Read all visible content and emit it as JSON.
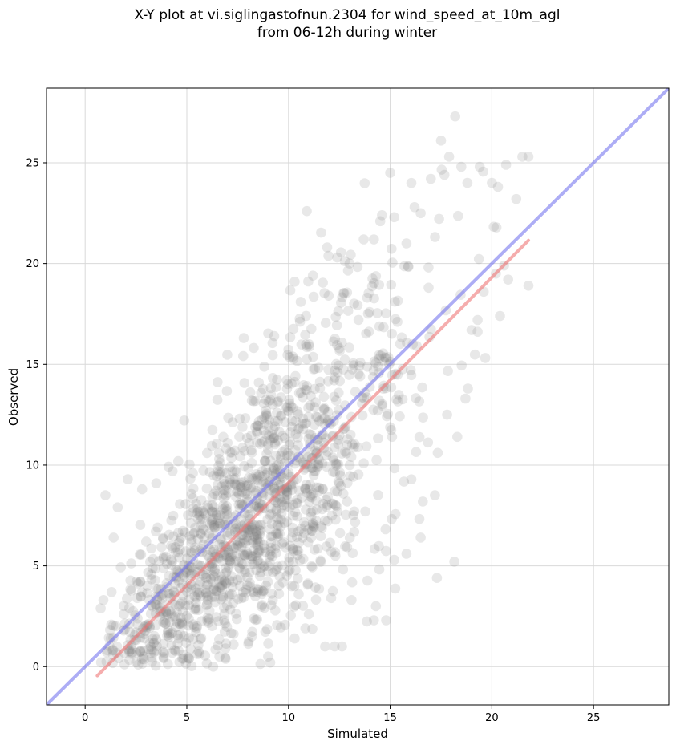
{
  "chart_data": {
    "type": "scatter",
    "title_line1": "X-Y plot at vi.siglingastofnun.2304 for wind_speed_at_10m_agl",
    "title_line2": "from 06-12h during winter",
    "xlabel": "Simulated",
    "ylabel": "Observed",
    "xlim": [
      -1.9,
      28.7
    ],
    "ylim": [
      -1.9,
      28.7
    ],
    "xticks": [
      0,
      5,
      10,
      15,
      20,
      25
    ],
    "yticks": [
      0,
      5,
      10,
      15,
      20,
      25
    ],
    "grid": true,
    "point_color": "#808080",
    "point_opacity": 0.18,
    "identity_line": {
      "color": "#7777ee",
      "from": [
        -1.9,
        -1.9
      ],
      "to": [
        28.7,
        28.7
      ]
    },
    "fit_line": {
      "color": "#ee7777",
      "from": [
        0.6,
        -0.45
      ],
      "to": [
        21.8,
        21.15
      ]
    },
    "generated_point_count": 1500,
    "points": [
      [
        0.9,
        3.3
      ],
      [
        1.1,
        0.8
      ],
      [
        1.3,
        3.7
      ],
      [
        1.0,
        8.5
      ],
      [
        1.4,
        6.4
      ],
      [
        1.6,
        7.9
      ],
      [
        2.1,
        9.3
      ],
      [
        1.9,
        2.6
      ],
      [
        2.5,
        1.7
      ],
      [
        3.0,
        6.2
      ],
      [
        2.8,
        8.8
      ],
      [
        3.5,
        9.1
      ],
      [
        3.2,
        5.2
      ],
      [
        4.3,
        9.7
      ],
      [
        3.8,
        3.1
      ],
      [
        4.6,
        1.4
      ],
      [
        5.1,
        0.4
      ],
      [
        5.5,
        2.0
      ],
      [
        6.3,
        0.0
      ],
      [
        6.6,
        0.5
      ],
      [
        6.9,
        0.9
      ],
      [
        7.3,
        1.1
      ],
      [
        8.2,
        1.5
      ],
      [
        9.1,
        0.2
      ],
      [
        9.0,
        0.5
      ],
      [
        10.3,
        1.4
      ],
      [
        11.8,
        1.0
      ],
      [
        11.0,
        2.6
      ],
      [
        12.1,
        3.4
      ],
      [
        13.1,
        3.3
      ],
      [
        14.2,
        2.3
      ],
      [
        14.8,
        2.3
      ],
      [
        14.3,
        3.0
      ],
      [
        15.2,
        5.3
      ],
      [
        15.8,
        5.6
      ],
      [
        16.5,
        6.4
      ],
      [
        17.3,
        4.4
      ],
      [
        17.2,
        8.5
      ],
      [
        18.3,
        11.4
      ],
      [
        17.8,
        12.5
      ],
      [
        18.7,
        13.3
      ],
      [
        19.0,
        16.7
      ],
      [
        19.3,
        17.2
      ],
      [
        19.6,
        18.6
      ],
      [
        20.4,
        17.4
      ],
      [
        20.2,
        19.5
      ],
      [
        20.6,
        19.9
      ],
      [
        20.8,
        19.2
      ],
      [
        21.8,
        18.9
      ],
      [
        21.2,
        23.2
      ],
      [
        21.5,
        25.3
      ],
      [
        21.8,
        25.3
      ],
      [
        20.7,
        24.9
      ],
      [
        20.3,
        23.8
      ],
      [
        20.0,
        24.0
      ],
      [
        19.4,
        24.8
      ],
      [
        18.8,
        24.0
      ],
      [
        18.5,
        24.8
      ],
      [
        18.2,
        27.3
      ],
      [
        17.5,
        26.1
      ],
      [
        17.9,
        25.3
      ],
      [
        17.0,
        24.2
      ],
      [
        16.5,
        22.5
      ],
      [
        16.2,
        22.8
      ],
      [
        15.8,
        21.0
      ],
      [
        15.2,
        22.3
      ],
      [
        15.0,
        24.5
      ],
      [
        14.6,
        22.4
      ],
      [
        14.2,
        21.2
      ],
      [
        13.7,
        21.2
      ],
      [
        13.0,
        20.0
      ],
      [
        12.4,
        20.3
      ],
      [
        11.9,
        20.8
      ],
      [
        11.2,
        19.4
      ],
      [
        10.6,
        18.1
      ],
      [
        10.3,
        19.1
      ],
      [
        9.3,
        16.4
      ],
      [
        7.8,
        16.3
      ],
      [
        8.2,
        13.2
      ],
      [
        7.6,
        12.3
      ],
      [
        7.0,
        11.1
      ],
      [
        6.0,
        10.6
      ],
      [
        5.3,
        9.6
      ]
    ]
  }
}
